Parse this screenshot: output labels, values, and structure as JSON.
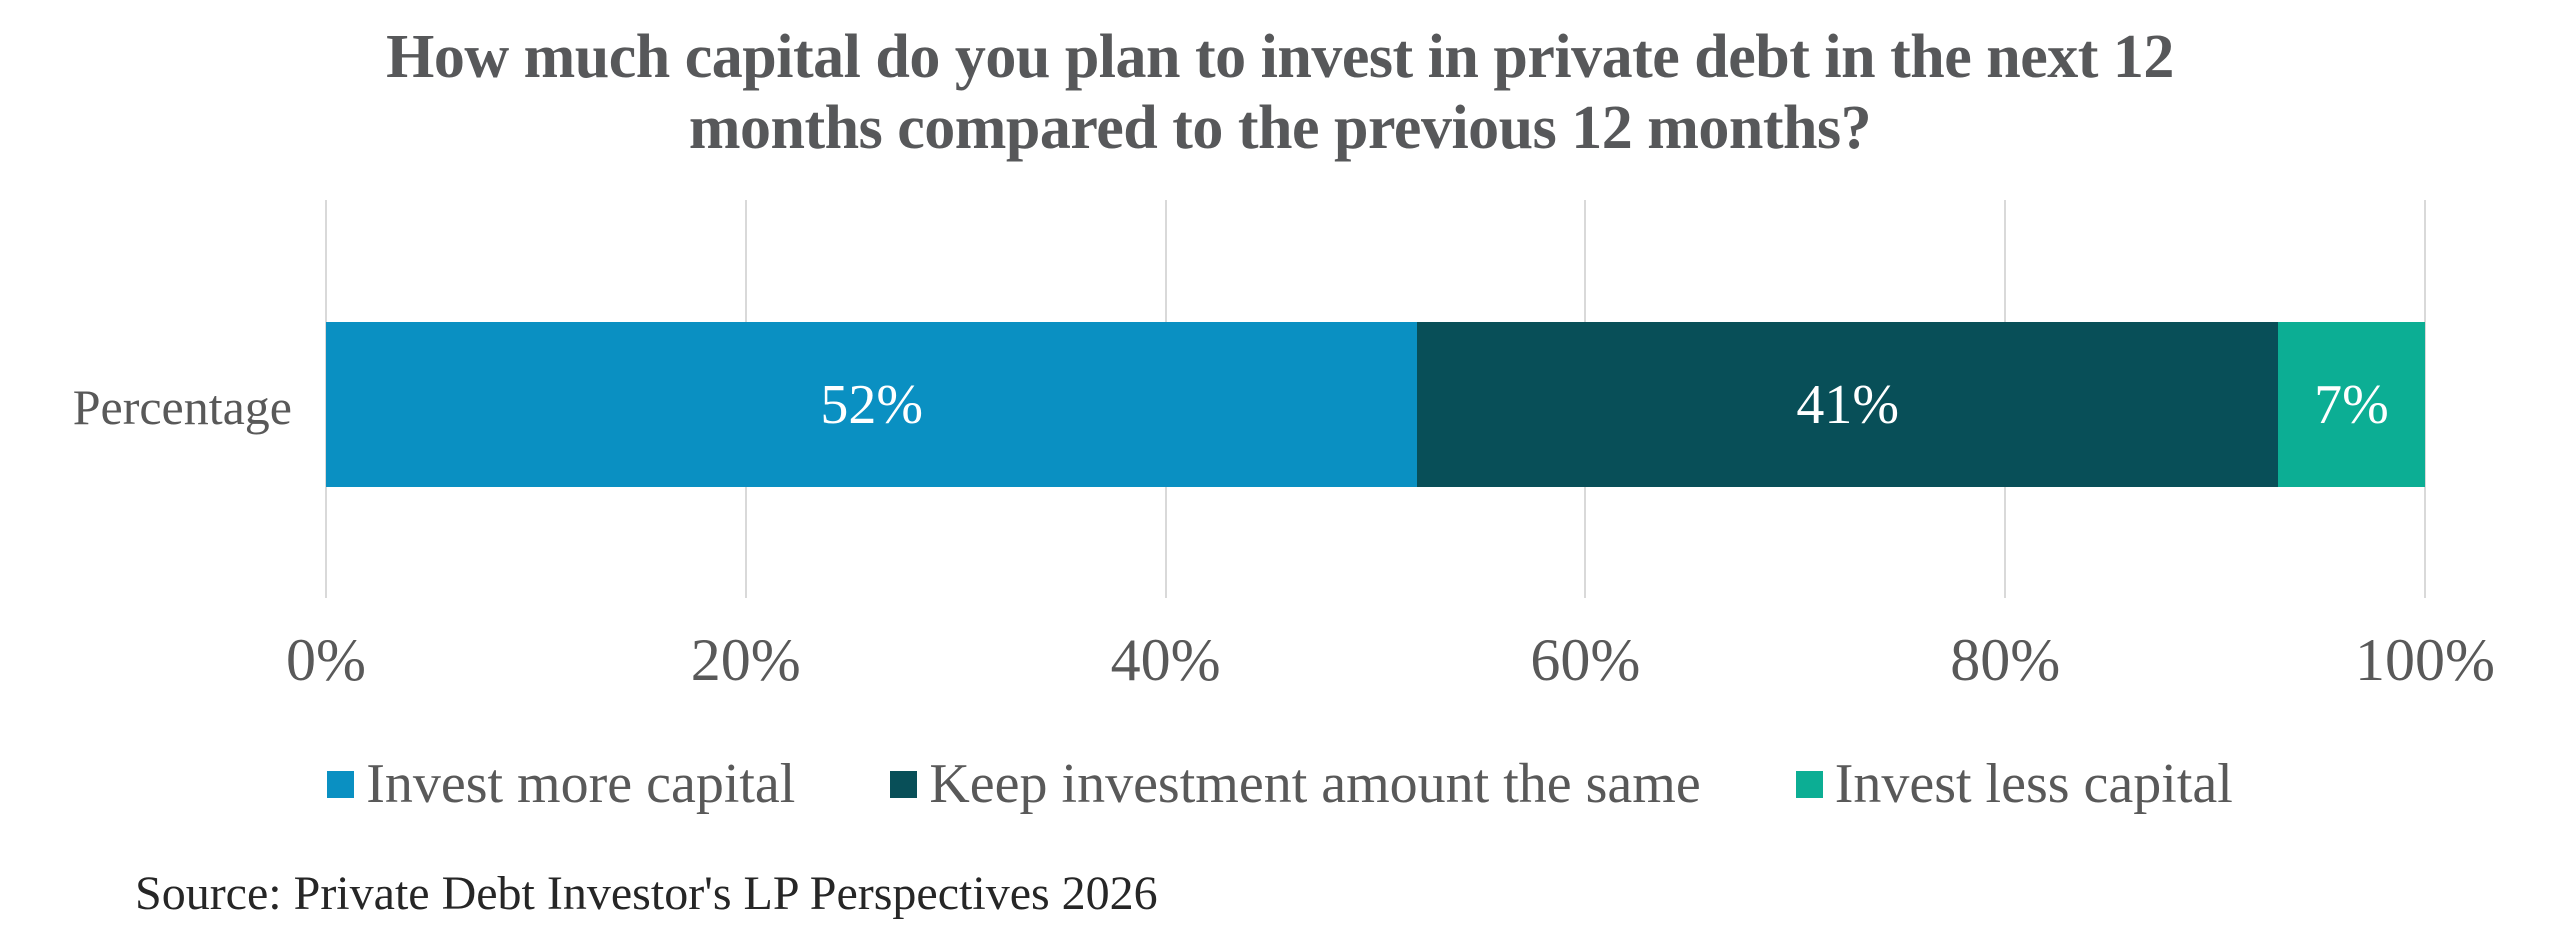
{
  "title": {
    "line1": "How much capital do you plan to invest in private debt in the next 12",
    "line2": "months compared to the previous 12 months?"
  },
  "chart_data": {
    "type": "bar",
    "orientation": "horizontal",
    "stacked": true,
    "title": "How much capital do you plan to invest in private debt in the next 12 months compared to the previous 12 months?",
    "categories": [
      "Percentage"
    ],
    "series": [
      {
        "name": "Invest more capital",
        "values": [
          52
        ],
        "data_label": "52%",
        "color": "#0a90c2"
      },
      {
        "name": "Keep investment amount the same",
        "values": [
          41
        ],
        "data_label": "41%",
        "color": "#084f58"
      },
      {
        "name": "Invest less capital",
        "values": [
          7
        ],
        "data_label": "7%",
        "color": "#0cae94"
      }
    ],
    "xlabel": "",
    "ylabel": "",
    "xlim": [
      0,
      100
    ],
    "x_ticks": [
      "0%",
      "20%",
      "40%",
      "60%",
      "80%",
      "100%"
    ],
    "x_tick_values": [
      0,
      20,
      40,
      60,
      80,
      100
    ],
    "grid": "vertical",
    "legend_position": "bottom"
  },
  "source": {
    "text": "Source: Private Debt Investor's LP Perspectives 2026"
  },
  "colors": {
    "background": "#ffffff",
    "title_text": "#57585a",
    "axis_text": "#595959",
    "gridline": "#d9d9d9",
    "bar_value_text": "#ffffff",
    "source_text": "#262626"
  }
}
